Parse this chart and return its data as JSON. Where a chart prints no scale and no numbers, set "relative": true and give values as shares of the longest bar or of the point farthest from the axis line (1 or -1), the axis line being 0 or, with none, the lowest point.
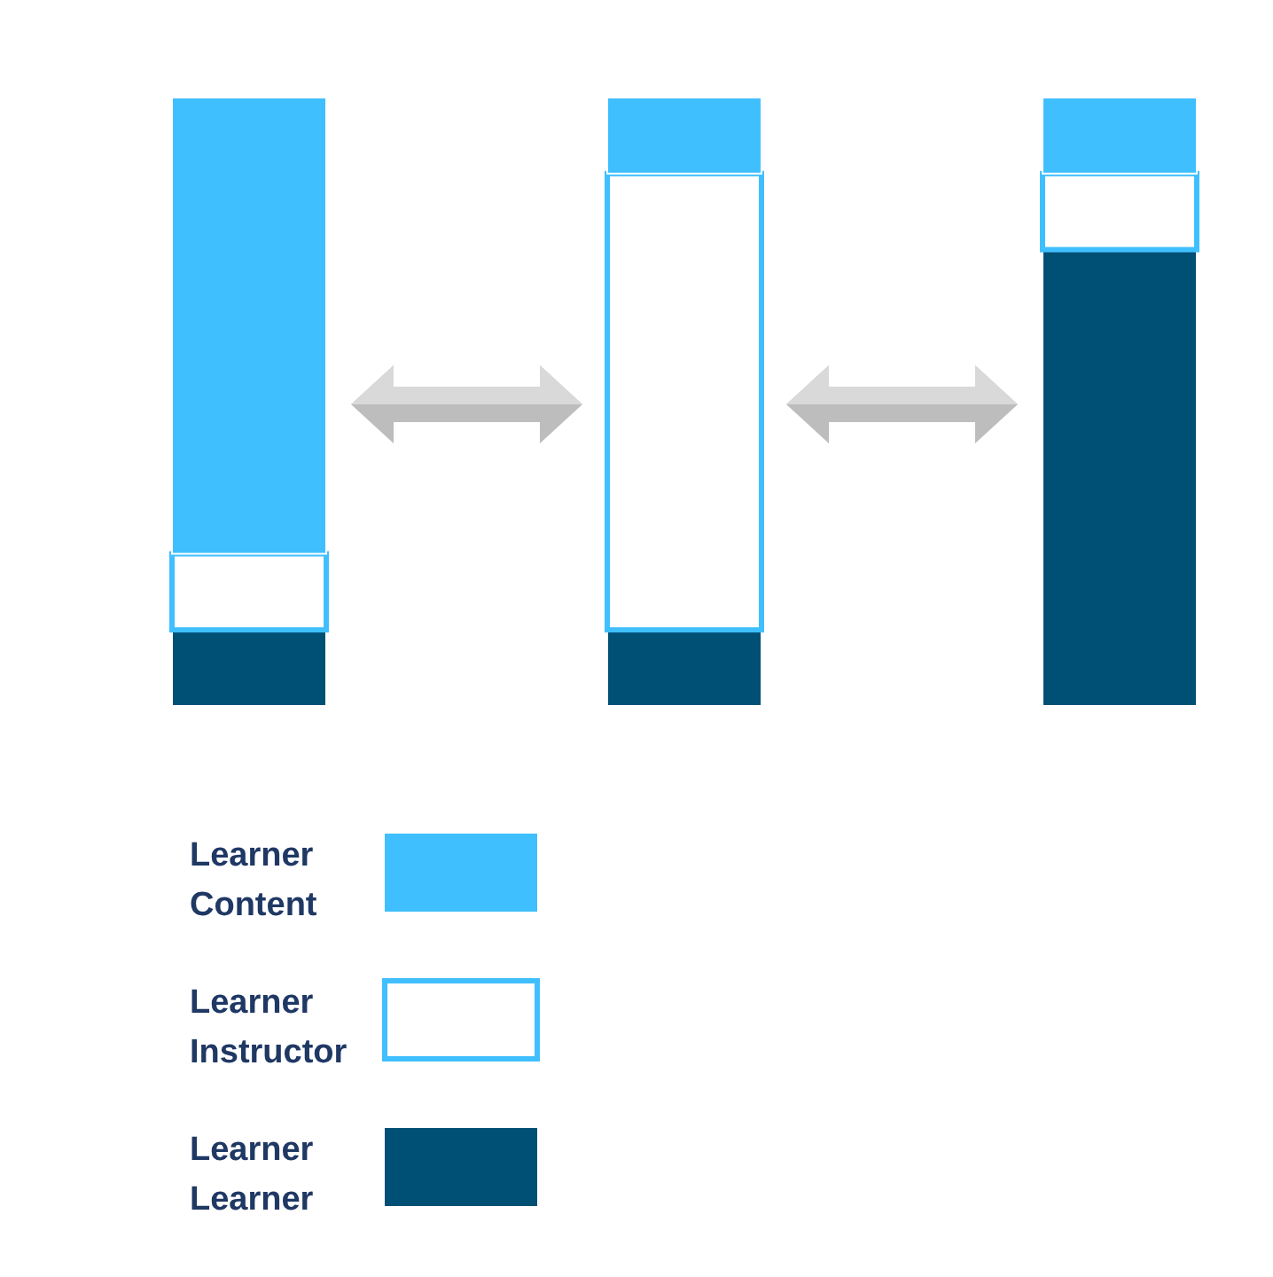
{
  "chart_data": {
    "type": "bar",
    "stacked": true,
    "relative": true,
    "categories": [
      null,
      null,
      null
    ],
    "legend": "bottom left",
    "series": [
      {
        "name": "Learner Learner",
        "color": "#004f74",
        "values": [
          0.125,
          0.125,
          0.75
        ]
      },
      {
        "name": "Learner Instructor",
        "color": "#ffffff",
        "values": [
          0.125,
          0.75,
          0.125
        ]
      },
      {
        "name": "Learner Content",
        "color": "#40bfff",
        "values": [
          0.75,
          0.125,
          0.125
        ]
      }
    ]
  }
}
